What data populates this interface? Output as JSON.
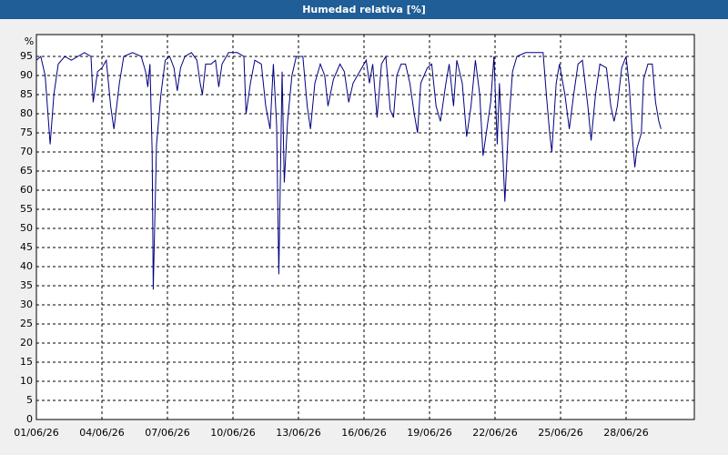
{
  "chart_data": {
    "type": "line",
    "title": "Humedad relativa [%]",
    "y_label": "%",
    "color": "#000080",
    "x": [
      1.0,
      1.2,
      1.4,
      1.63,
      1.8,
      2.0,
      2.3,
      2.6,
      2.9,
      3.2,
      3.5,
      3.6,
      3.8,
      4.0,
      4.2,
      4.4,
      4.55,
      4.8,
      5.0,
      5.4,
      5.8,
      6.0,
      6.1,
      6.2,
      6.3,
      6.35,
      6.5,
      6.7,
      6.9,
      7.1,
      7.3,
      7.45,
      7.6,
      7.8,
      8.1,
      8.35,
      8.5,
      8.6,
      8.75,
      9.0,
      9.2,
      9.35,
      9.5,
      9.8,
      10.2,
      10.5,
      10.6,
      10.8,
      11.0,
      11.3,
      11.5,
      11.7,
      11.85,
      12.0,
      12.1,
      12.25,
      12.35,
      12.5,
      12.7,
      12.9,
      13.2,
      13.4,
      13.55,
      13.75,
      14.0,
      14.2,
      14.35,
      14.6,
      14.9,
      15.1,
      15.3,
      15.5,
      15.8,
      16.1,
      16.25,
      16.4,
      16.6,
      16.8,
      17.0,
      17.2,
      17.35,
      17.5,
      17.7,
      17.9,
      18.1,
      18.3,
      18.45,
      18.6,
      18.9,
      19.1,
      19.3,
      19.5,
      19.75,
      19.9,
      20.1,
      20.25,
      20.5,
      20.7,
      20.9,
      21.1,
      21.3,
      21.45,
      21.6,
      21.8,
      21.95,
      22.1,
      22.2,
      22.35,
      22.45,
      22.6,
      22.8,
      23.0,
      23.4,
      23.8,
      24.2,
      24.35,
      24.5,
      24.6,
      24.8,
      24.95,
      25.2,
      25.4,
      25.6,
      25.8,
      26.0,
      26.25,
      26.4,
      26.6,
      26.8,
      27.1,
      27.3,
      27.45,
      27.6,
      27.8,
      28.0,
      28.15,
      28.3,
      28.4,
      28.5,
      28.7,
      28.8,
      29.0,
      29.2,
      29.35,
      29.5,
      29.6
    ],
    "values": [
      94,
      95,
      90,
      72,
      85,
      93,
      95,
      94,
      95,
      96,
      95,
      83,
      91,
      92,
      94,
      82,
      76,
      88,
      95,
      96,
      95,
      91,
      87,
      93,
      70,
      34,
      72,
      85,
      94,
      95,
      92,
      86,
      92,
      95,
      96,
      94,
      88,
      85,
      93,
      93,
      94,
      87,
      93,
      96,
      96,
      95,
      80,
      88,
      94,
      93,
      82,
      76,
      93,
      77,
      38,
      91,
      62,
      78,
      90,
      95,
      95,
      82,
      76,
      88,
      93,
      90,
      82,
      89,
      93,
      91,
      83,
      88,
      91,
      94,
      88,
      93,
      79,
      93,
      95,
      81,
      79,
      90,
      93,
      93,
      88,
      80,
      75,
      88,
      92,
      93,
      82,
      78,
      88,
      93,
      82,
      94,
      88,
      74,
      82,
      94,
      85,
      69,
      75,
      83,
      95,
      72,
      88,
      70,
      57,
      75,
      91,
      95,
      96,
      96,
      96,
      85,
      75,
      70,
      88,
      93,
      85,
      76,
      85,
      93,
      94,
      82,
      73,
      85,
      93,
      92,
      82,
      78,
      82,
      92,
      95,
      87,
      73,
      66,
      71,
      75,
      89,
      93,
      93,
      83,
      78,
      76
    ],
    "xlim": [
      1,
      31.125
    ],
    "ylim": [
      0,
      100
    ],
    "xticks": [
      {
        "value": 1,
        "label": "01/06/26"
      },
      {
        "value": 4,
        "label": "04/06/26"
      },
      {
        "value": 7,
        "label": "07/06/26"
      },
      {
        "value": 10,
        "label": "10/06/26"
      },
      {
        "value": 13,
        "label": "13/06/26"
      },
      {
        "value": 16,
        "label": "16/06/26"
      },
      {
        "value": 19,
        "label": "19/06/26"
      },
      {
        "value": 22,
        "label": "22/06/26"
      },
      {
        "value": 25,
        "label": "25/06/26"
      },
      {
        "value": 28,
        "label": "28/06/26"
      }
    ],
    "yticks": [
      0,
      5,
      10,
      15,
      20,
      25,
      30,
      35,
      40,
      45,
      50,
      55,
      60,
      65,
      70,
      75,
      80,
      85,
      90,
      95
    ],
    "grid": true
  }
}
